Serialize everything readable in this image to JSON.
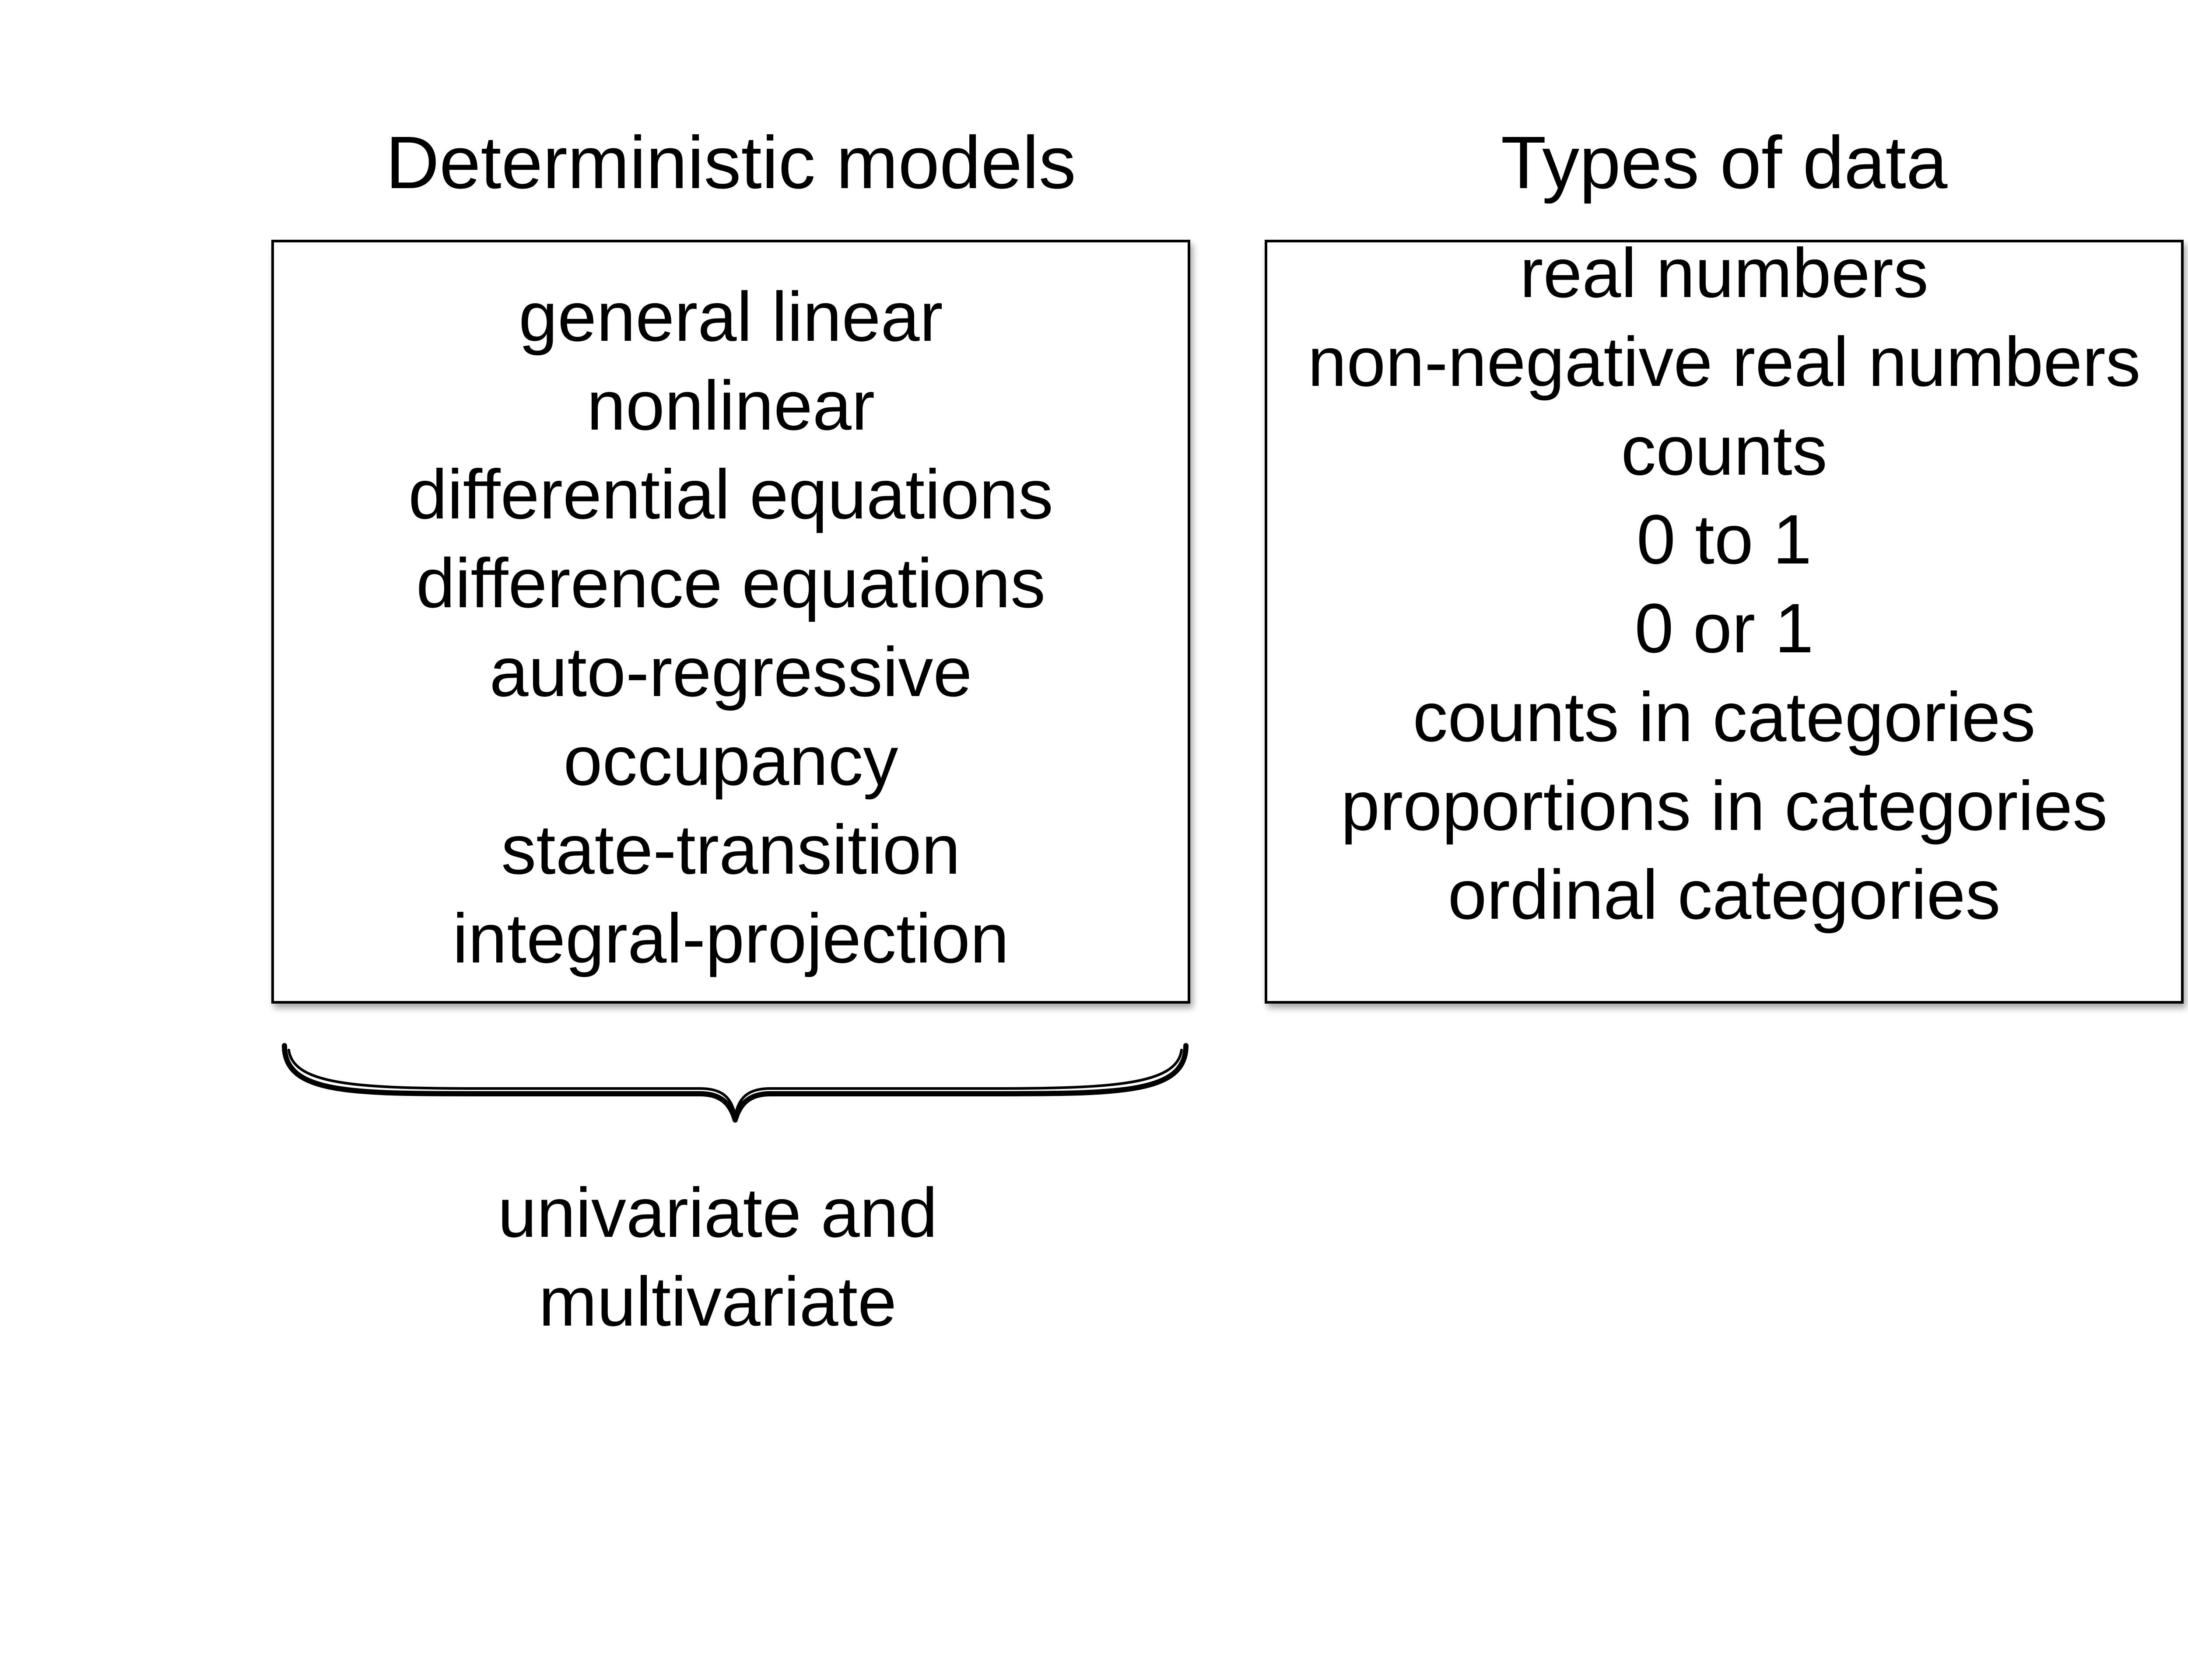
{
  "left_panel": {
    "heading": "Deterministic models",
    "items": [
      "general linear",
      "nonlinear",
      "differential equations",
      "difference equations",
      "auto-regressive",
      "occupancy",
      "state-transition",
      "integral-projection"
    ],
    "footnote": [
      "univariate and",
      "multivariate"
    ]
  },
  "right_panel": {
    "heading": "Types of data",
    "items": [
      "real numbers",
      "non-negative real numbers",
      "counts",
      "0 to 1",
      "0 or 1",
      "counts in categories",
      "proportions in categories",
      "ordinal categories"
    ]
  },
  "colors": {
    "text": "#000000",
    "border": "#000000",
    "background": "#ffffff"
  }
}
